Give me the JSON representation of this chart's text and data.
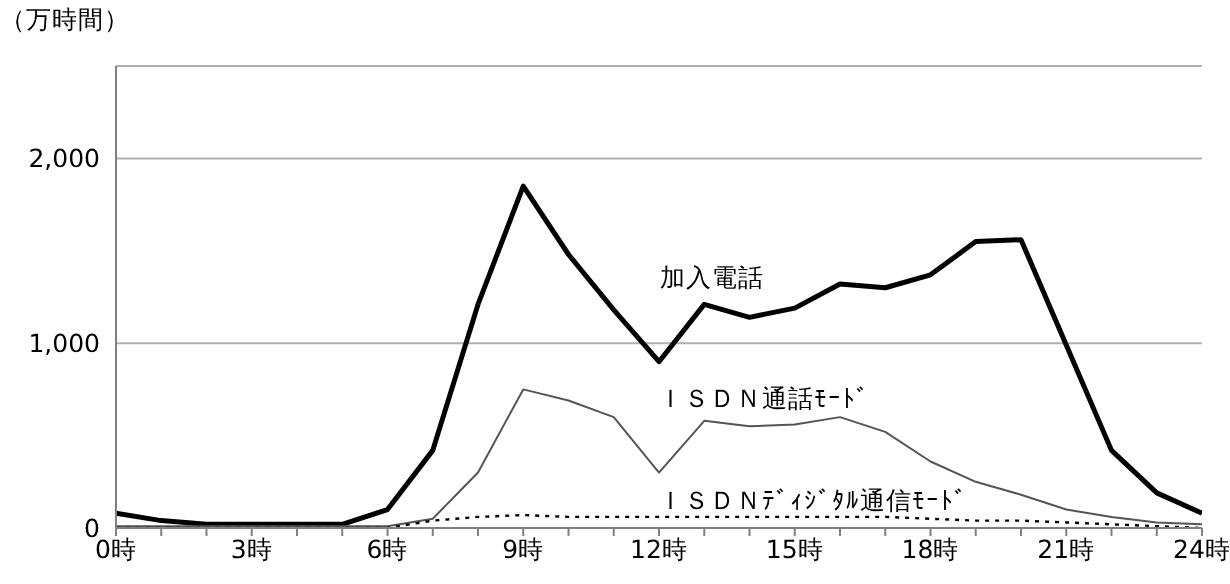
{
  "chart_data": {
    "type": "line",
    "ylabel": "（万時間）",
    "x": [
      0,
      1,
      2,
      3,
      4,
      5,
      6,
      7,
      8,
      9,
      10,
      11,
      12,
      13,
      14,
      15,
      16,
      17,
      18,
      19,
      20,
      21,
      22,
      23,
      24
    ],
    "xlim": [
      0,
      24
    ],
    "xticks": [
      {
        "value": 0,
        "label": "0時"
      },
      {
        "value": 1,
        "label": null
      },
      {
        "value": 2,
        "label": null
      },
      {
        "value": 3,
        "label": "3時"
      },
      {
        "value": 4,
        "label": null
      },
      {
        "value": 5,
        "label": null
      },
      {
        "value": 6,
        "label": "6時"
      },
      {
        "value": 7,
        "label": null
      },
      {
        "value": 8,
        "label": null
      },
      {
        "value": 9,
        "label": "9時"
      },
      {
        "value": 10,
        "label": null
      },
      {
        "value": 11,
        "label": null
      },
      {
        "value": 12,
        "label": "12時"
      },
      {
        "value": 13,
        "label": null
      },
      {
        "value": 14,
        "label": null
      },
      {
        "value": 15,
        "label": "15時"
      },
      {
        "value": 16,
        "label": null
      },
      {
        "value": 17,
        "label": null
      },
      {
        "value": 18,
        "label": "18時"
      },
      {
        "value": 19,
        "label": null
      },
      {
        "value": 20,
        "label": null
      },
      {
        "value": 21,
        "label": "21時"
      },
      {
        "value": 22,
        "label": null
      },
      {
        "value": 23,
        "label": null
      },
      {
        "value": 24,
        "label": "24時"
      }
    ],
    "ylim": [
      0,
      2500
    ],
    "yticks": [
      0,
      {
        "value": 1000,
        "label": "1,000"
      },
      {
        "value": 2000,
        "label": "2,000"
      }
    ],
    "grid": "y",
    "marker": "none",
    "series": [
      {
        "name": "加入電話",
        "color": "#000000",
        "line_style": "solid",
        "values": [
          80,
          40,
          20,
          20,
          20,
          20,
          100,
          420,
          1210,
          1850,
          1480,
          1180,
          900,
          1210,
          1140,
          1190,
          1320,
          1300,
          1370,
          1550,
          1560,
          990,
          420,
          190,
          80
        ]
      },
      {
        "name": "ＩＳＤＮ通話ﾓｰﾄﾞ",
        "color": "#555555",
        "line_style": "solid",
        "values": [
          10,
          10,
          10,
          10,
          10,
          10,
          10,
          50,
          300,
          750,
          690,
          600,
          300,
          580,
          550,
          560,
          600,
          520,
          360,
          250,
          180,
          100,
          60,
          30,
          20
        ]
      },
      {
        "name": "ＩＳＤＮﾃﾞｨｼﾞﾀﾙ通信ﾓｰﾄﾞ",
        "color": "#000000",
        "line_style": "dotted",
        "values": [
          0,
          0,
          0,
          0,
          0,
          0,
          0,
          40,
          60,
          70,
          60,
          60,
          60,
          60,
          60,
          60,
          60,
          60,
          50,
          40,
          40,
          30,
          20,
          10,
          0
        ]
      }
    ]
  }
}
